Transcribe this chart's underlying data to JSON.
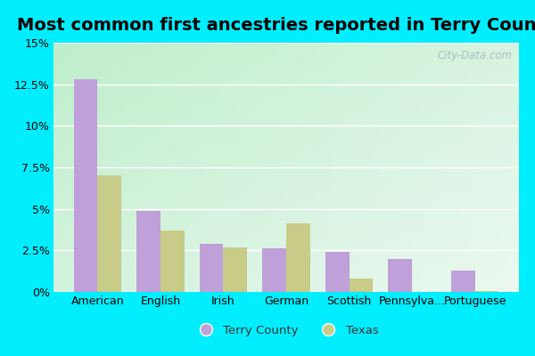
{
  "title": "Most common first ancestries reported in Terry County",
  "categories": [
    "American",
    "English",
    "Irish",
    "German",
    "Scottish",
    "Pennsylva...",
    "Portuguese"
  ],
  "terry_county": [
    12.8,
    4.9,
    2.9,
    2.6,
    2.4,
    2.0,
    1.3
  ],
  "texas": [
    7.0,
    3.7,
    2.7,
    4.1,
    0.8,
    0.0,
    0.05
  ],
  "terry_color": "#c0a0d8",
  "texas_color": "#c8cc88",
  "background_outer": "#00eeff",
  "background_inner_left": "#b8eec8",
  "background_inner_right": "#e8f8f0",
  "ylim": [
    0,
    15
  ],
  "yticks": [
    0,
    2.5,
    5.0,
    7.5,
    10.0,
    12.5,
    15.0
  ],
  "ytick_labels": [
    "0%",
    "2.5%",
    "5%",
    "7.5%",
    "10%",
    "12.5%",
    "15%"
  ],
  "bar_width": 0.38,
  "legend_terry": "Terry County",
  "legend_texas": "Texas",
  "watermark": "City-Data.com",
  "title_fontsize": 14,
  "label_fontsize": 9,
  "figsize": [
    6.0,
    4.0
  ],
  "dpi": 100
}
